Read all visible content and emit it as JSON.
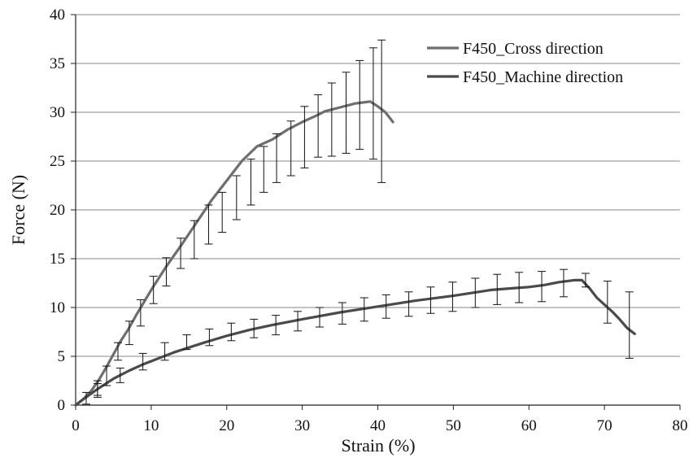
{
  "chart_data": {
    "type": "line",
    "xlabel": "Strain (%)",
    "ylabel": "Force (N)",
    "xlim": [
      0,
      80
    ],
    "ylim": [
      0,
      40
    ],
    "xticks": [
      0,
      10,
      20,
      30,
      40,
      50,
      60,
      70,
      80
    ],
    "yticks": [
      0,
      5,
      10,
      15,
      20,
      25,
      30,
      35,
      40
    ],
    "grid": "horizontal",
    "legend_position": "top-right",
    "series": [
      {
        "name": "F450_Cross direction",
        "color": "#6e6e6e",
        "x": [
          0,
          1,
          2,
          3,
          4,
          5,
          6,
          7,
          8,
          9,
          10,
          12,
          14,
          16,
          18,
          20,
          22,
          24,
          26,
          28,
          30,
          32,
          33,
          34,
          35,
          36,
          37,
          38,
          39,
          40,
          41,
          42
        ],
        "y": [
          0,
          0.6,
          1.4,
          2.5,
          3.8,
          5.2,
          6.6,
          7.8,
          9.2,
          10.5,
          11.8,
          14.2,
          16.4,
          18.7,
          21.0,
          23.0,
          25.0,
          26.5,
          27.2,
          28.2,
          29.0,
          29.7,
          30.1,
          30.3,
          30.5,
          30.7,
          30.9,
          31.0,
          31.1,
          30.6,
          30.0,
          29.0
        ],
        "error_bars": {
          "x": [
            1.4,
            2.9,
            4.1,
            5.6,
            7.1,
            8.6,
            10.3,
            12.0,
            13.9,
            15.7,
            17.6,
            19.4,
            21.3,
            23.2,
            24.9,
            26.6,
            28.5,
            30.3,
            32.1,
            33.9,
            35.8,
            37.6,
            39.4,
            40.5
          ],
          "low": [
            0.1,
            1.0,
            2.0,
            4.6,
            6.2,
            8.1,
            10.4,
            12.2,
            14.0,
            15.0,
            16.5,
            17.7,
            19.0,
            20.5,
            21.8,
            22.8,
            23.5,
            24.3,
            25.4,
            25.5,
            25.8,
            26.2,
            25.2,
            22.8
          ],
          "high": [
            1.3,
            2.5,
            4.0,
            6.4,
            8.6,
            10.8,
            13.2,
            15.1,
            17.1,
            18.9,
            20.5,
            21.8,
            23.5,
            25.2,
            26.5,
            27.8,
            29.1,
            30.6,
            31.8,
            33.0,
            34.1,
            35.3,
            36.6,
            37.4
          ]
        }
      },
      {
        "name": "F450_Machine direction",
        "color": "#4a4a4a",
        "x": [
          0,
          1,
          3,
          5,
          7,
          9,
          11,
          13,
          15,
          17,
          20,
          23,
          26,
          30,
          35,
          40,
          45,
          50,
          55,
          60,
          62,
          64,
          66,
          67,
          68,
          69,
          70,
          71,
          72,
          73,
          74
        ],
        "y": [
          0,
          0.6,
          1.7,
          2.7,
          3.5,
          4.2,
          4.8,
          5.4,
          5.9,
          6.4,
          7.1,
          7.7,
          8.2,
          8.8,
          9.5,
          10.1,
          10.7,
          11.2,
          11.8,
          12.1,
          12.3,
          12.6,
          12.8,
          12.8,
          12.0,
          11.0,
          10.3,
          9.6,
          8.8,
          7.9,
          7.3
        ],
        "error_bars": {
          "x": [
            2.9,
            5.9,
            8.9,
            11.8,
            14.7,
            17.7,
            20.6,
            23.6,
            26.5,
            29.4,
            32.3,
            35.3,
            38.2,
            41.1,
            44.1,
            47.0,
            49.9,
            52.9,
            55.8,
            58.7,
            61.7,
            64.6,
            67.5,
            70.4,
            73.3
          ],
          "low": [
            0.8,
            2.3,
            3.6,
            4.6,
            5.7,
            6.1,
            6.6,
            6.9,
            7.2,
            7.6,
            8.0,
            8.3,
            8.6,
            8.9,
            9.1,
            9.4,
            9.6,
            10.0,
            10.3,
            10.5,
            10.6,
            11.1,
            12.1,
            8.4,
            4.8
          ],
          "high": [
            2.2,
            3.8,
            5.3,
            6.4,
            7.2,
            7.8,
            8.4,
            8.8,
            9.2,
            9.6,
            10.0,
            10.5,
            11.0,
            11.3,
            11.6,
            12.1,
            12.6,
            13.0,
            13.4,
            13.6,
            13.7,
            13.9,
            13.5,
            12.7,
            11.6
          ]
        }
      }
    ]
  }
}
